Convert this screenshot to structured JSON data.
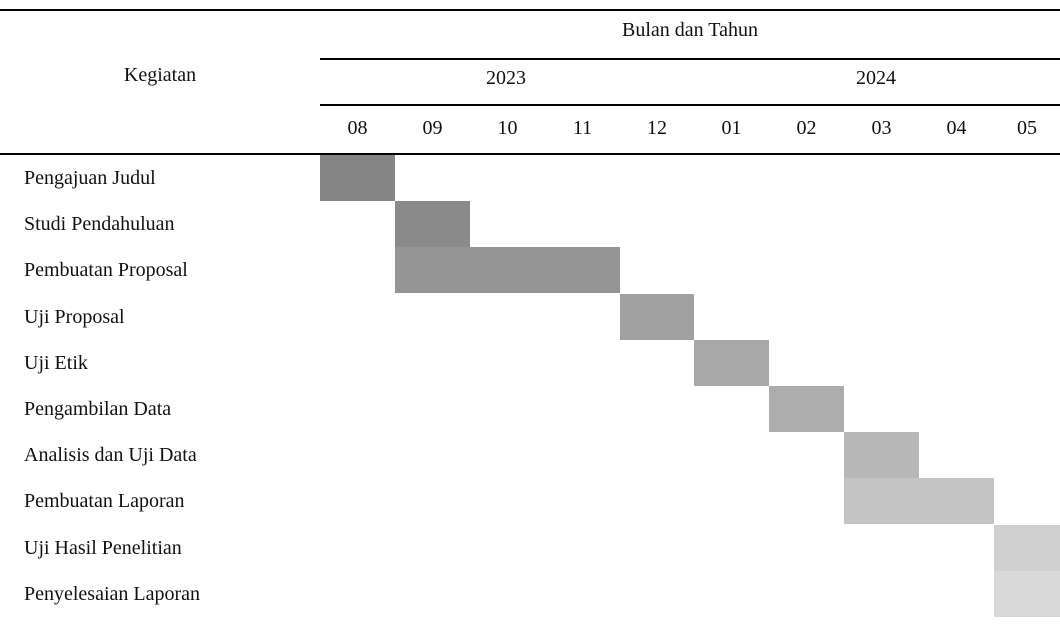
{
  "header": {
    "activity_label": "Kegiatan",
    "period_label": "Bulan dan Tahun",
    "years": [
      "2023",
      "2024"
    ],
    "months": [
      "08",
      "09",
      "10",
      "11",
      "12",
      "01",
      "02",
      "03",
      "04",
      "05"
    ]
  },
  "activities": [
    {
      "name": "Pengajuan Judul",
      "start": 0,
      "end": 0,
      "shade": "#858585"
    },
    {
      "name": "Studi Pendahuluan",
      "start": 1,
      "end": 1,
      "shade": "#8a8a8a"
    },
    {
      "name": "Pembuatan Proposal",
      "start": 1,
      "end": 3,
      "shade": "#959595"
    },
    {
      "name": "Uji Proposal",
      "start": 4,
      "end": 4,
      "shade": "#a0a0a0"
    },
    {
      "name": "Uji Etik",
      "start": 5,
      "end": 5,
      "shade": "#a8a8a8"
    },
    {
      "name": "Pengambilan Data",
      "start": 6,
      "end": 6,
      "shade": "#adadad"
    },
    {
      "name": "Analisis dan Uji Data",
      "start": 7,
      "end": 7,
      "shade": "#b8b8b8"
    },
    {
      "name": "Pembuatan Laporan",
      "start": 7,
      "end": 8,
      "shade": "#c4c4c4"
    },
    {
      "name": "Uji Hasil Penelitian",
      "start": 9,
      "end": 9,
      "shade": "#d0d0d0"
    },
    {
      "name": "Penyelesaian Laporan",
      "start": 9,
      "end": 9,
      "shade": "#d9d9d9"
    }
  ]
}
